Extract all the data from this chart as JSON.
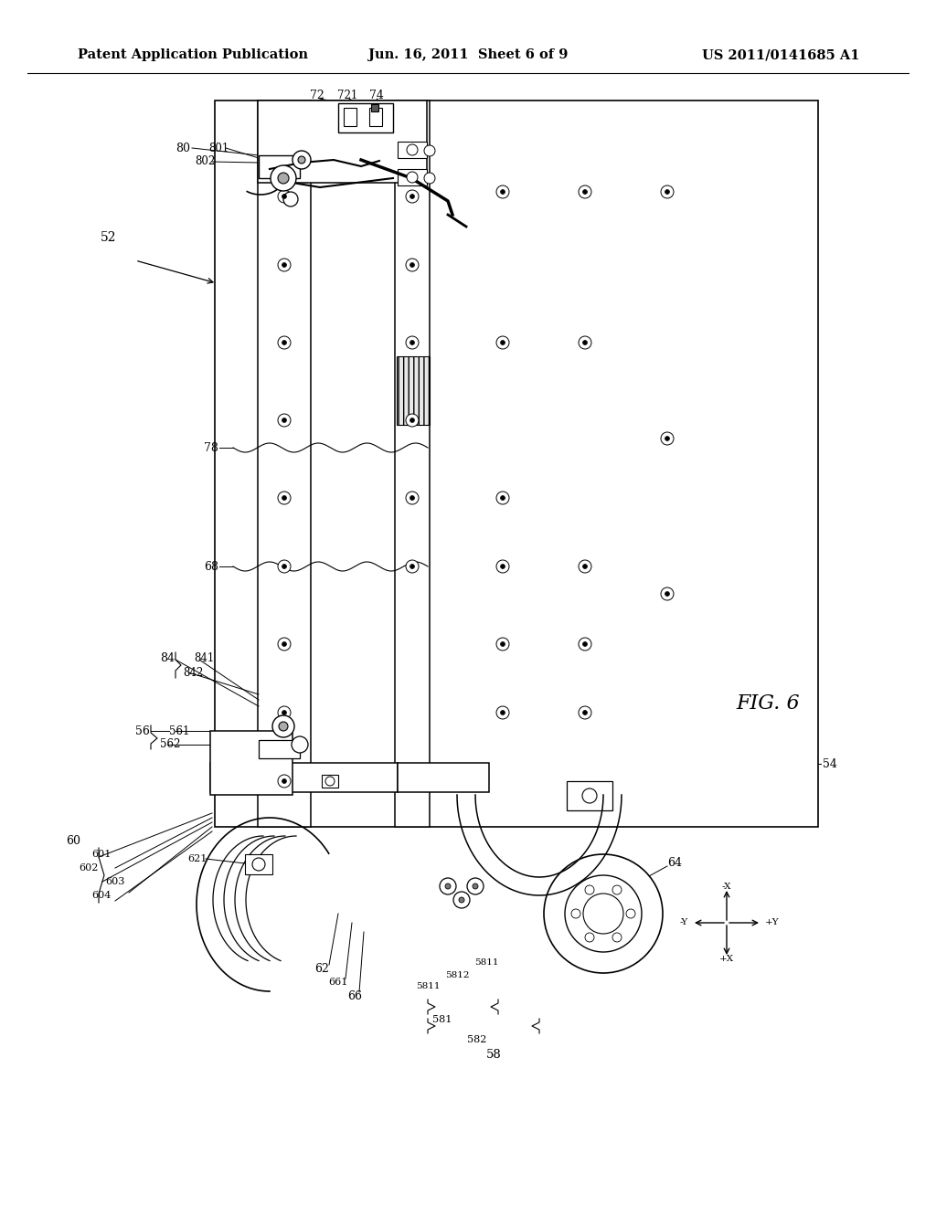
{
  "background_color": "#ffffff",
  "header_left": "Patent Application Publication",
  "header_center": "Jun. 16, 2011  Sheet 6 of 9",
  "header_right": "US 2011/0141685 A1",
  "fig_label": "FIG. 6",
  "header_fontsize": 10.5,
  "label_fontsize": 9.5
}
